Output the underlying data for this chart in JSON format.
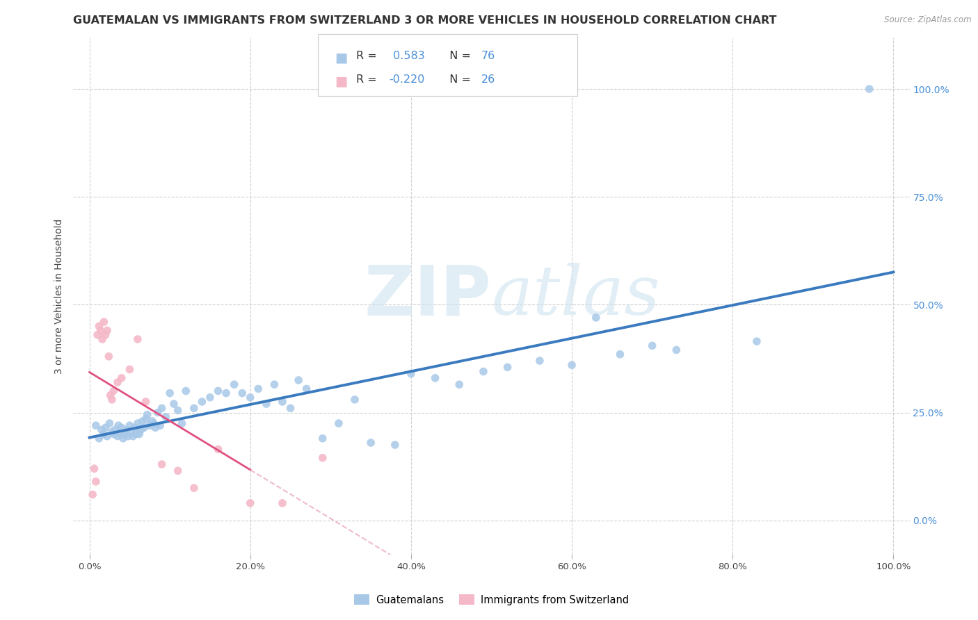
{
  "title": "GUATEMALAN VS IMMIGRANTS FROM SWITZERLAND 3 OR MORE VEHICLES IN HOUSEHOLD CORRELATION CHART",
  "source": "Source: ZipAtlas.com",
  "ylabel": "3 or more Vehicles in Household",
  "background_color": "#ffffff",
  "watermark": "ZIPatlas",
  "xlim": [
    -0.02,
    1.02
  ],
  "ylim": [
    -0.08,
    1.12
  ],
  "xticks": [
    0.0,
    0.2,
    0.4,
    0.6,
    0.8,
    1.0
  ],
  "yticks": [
    0.0,
    0.25,
    0.5,
    0.75,
    1.0
  ],
  "xtick_labels": [
    "0.0%",
    "20.0%",
    "40.0%",
    "60.0%",
    "80.0%",
    "100.0%"
  ],
  "ytick_labels_right": [
    "0.0%",
    "25.0%",
    "50.0%",
    "75.0%",
    "100.0%"
  ],
  "blue_color": "#a8c8e8",
  "pink_color": "#f4b8c8",
  "trend_blue": "#3a7abf",
  "trend_pink": "#e05080",
  "trend_pink_dash": "#e8a0b0",
  "legend_blue_label": "Guatemalans",
  "legend_pink_label": "Immigrants from Switzerland",
  "R_blue": 0.583,
  "N_blue": 76,
  "R_pink": -0.22,
  "N_pink": 26,
  "blue_x": [
    0.008,
    0.012,
    0.015,
    0.018,
    0.02,
    0.022,
    0.025,
    0.028,
    0.03,
    0.032,
    0.035,
    0.036,
    0.038,
    0.04,
    0.042,
    0.044,
    0.046,
    0.048,
    0.05,
    0.052,
    0.054,
    0.056,
    0.058,
    0.06,
    0.062,
    0.064,
    0.066,
    0.068,
    0.07,
    0.072,
    0.075,
    0.078,
    0.08,
    0.082,
    0.085,
    0.088,
    0.09,
    0.095,
    0.1,
    0.105,
    0.11,
    0.115,
    0.12,
    0.13,
    0.14,
    0.15,
    0.16,
    0.17,
    0.18,
    0.19,
    0.2,
    0.21,
    0.22,
    0.23,
    0.24,
    0.25,
    0.26,
    0.27,
    0.29,
    0.31,
    0.33,
    0.35,
    0.38,
    0.4,
    0.43,
    0.46,
    0.49,
    0.52,
    0.56,
    0.6,
    0.63,
    0.66,
    0.7,
    0.73,
    0.83,
    0.97
  ],
  "blue_y": [
    0.22,
    0.19,
    0.21,
    0.2,
    0.215,
    0.195,
    0.225,
    0.205,
    0.2,
    0.21,
    0.195,
    0.22,
    0.2,
    0.215,
    0.19,
    0.2,
    0.21,
    0.195,
    0.22,
    0.205,
    0.195,
    0.215,
    0.2,
    0.225,
    0.2,
    0.21,
    0.23,
    0.215,
    0.235,
    0.245,
    0.22,
    0.23,
    0.225,
    0.215,
    0.25,
    0.22,
    0.26,
    0.24,
    0.295,
    0.27,
    0.255,
    0.225,
    0.3,
    0.26,
    0.275,
    0.285,
    0.3,
    0.295,
    0.315,
    0.295,
    0.285,
    0.305,
    0.27,
    0.315,
    0.275,
    0.26,
    0.325,
    0.305,
    0.19,
    0.225,
    0.28,
    0.18,
    0.175,
    0.34,
    0.33,
    0.315,
    0.345,
    0.355,
    0.37,
    0.36,
    0.47,
    0.385,
    0.405,
    0.395,
    0.415,
    1.0
  ],
  "pink_x": [
    0.004,
    0.006,
    0.008,
    0.01,
    0.012,
    0.014,
    0.016,
    0.018,
    0.02,
    0.022,
    0.024,
    0.026,
    0.028,
    0.03,
    0.035,
    0.04,
    0.05,
    0.06,
    0.07,
    0.09,
    0.11,
    0.13,
    0.16,
    0.2,
    0.24,
    0.29
  ],
  "pink_y": [
    0.06,
    0.12,
    0.09,
    0.43,
    0.45,
    0.44,
    0.42,
    0.46,
    0.43,
    0.44,
    0.38,
    0.29,
    0.28,
    0.3,
    0.32,
    0.33,
    0.35,
    0.42,
    0.275,
    0.13,
    0.115,
    0.075,
    0.165,
    0.04,
    0.04,
    0.145
  ]
}
